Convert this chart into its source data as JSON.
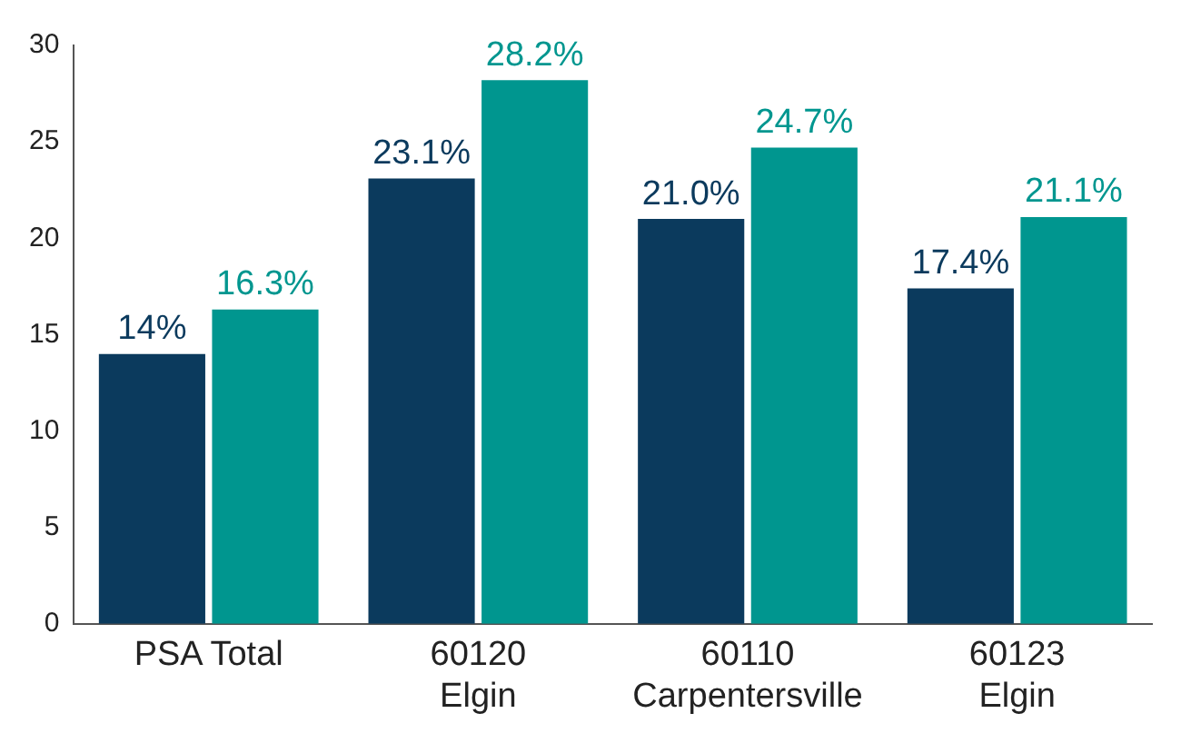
{
  "chart_data": {
    "type": "bar",
    "categories": [
      "PSA Total",
      "60120\nElgin",
      "60110\nCarpentersville",
      "60123\nElgin"
    ],
    "series": [
      {
        "color": "#0b3a5d",
        "values": [
          14,
          23.1,
          21.0,
          17.4
        ],
        "value_labels": [
          "14%",
          "23.1%",
          "21.0%",
          "17.4%"
        ]
      },
      {
        "color": "#00968f",
        "values": [
          16.3,
          28.2,
          24.7,
          21.1
        ],
        "value_labels": [
          "16.3%",
          "28.2%",
          "24.7%",
          "21.1%"
        ]
      }
    ],
    "ylim": [
      0,
      30
    ],
    "yticks": [
      0,
      5,
      10,
      15,
      20,
      25,
      30
    ],
    "grid": false,
    "legend": false
  }
}
